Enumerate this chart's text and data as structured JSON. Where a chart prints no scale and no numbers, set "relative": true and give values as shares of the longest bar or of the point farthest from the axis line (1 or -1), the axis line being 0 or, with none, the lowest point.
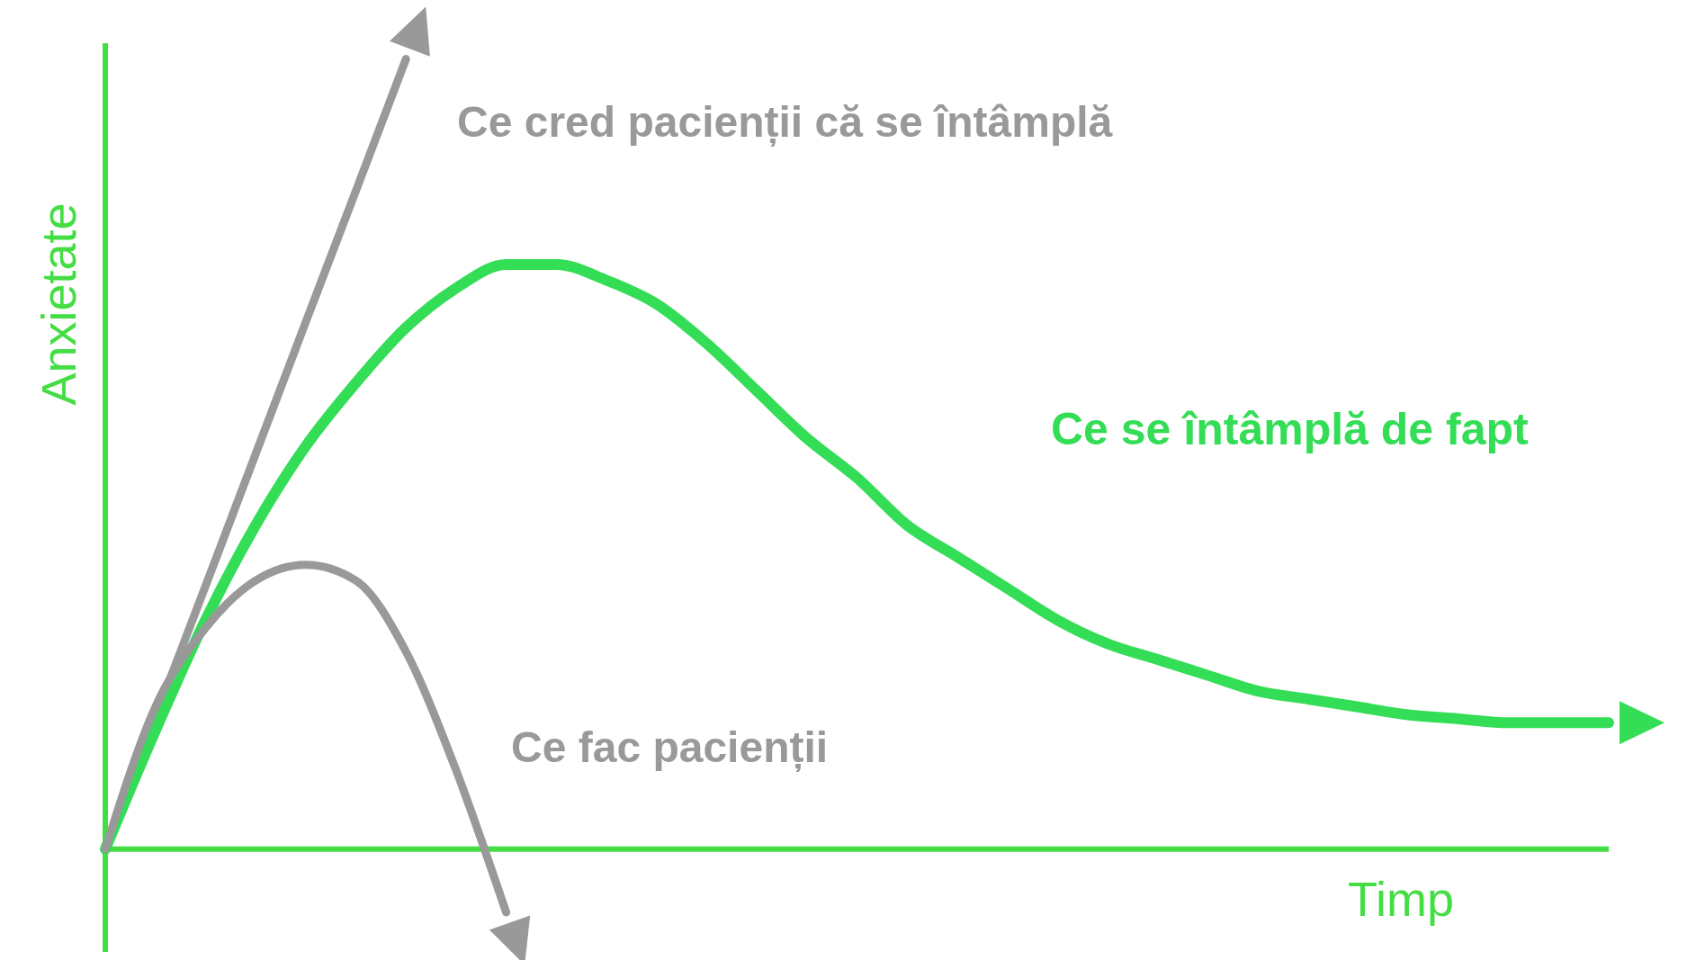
{
  "chart_data": {
    "type": "line",
    "relative": true,
    "xlabel": "Timp",
    "ylabel": "Anxietate",
    "categories": [
      null,
      null,
      null,
      null,
      null,
      null,
      null,
      null,
      null,
      null,
      null,
      null,
      null,
      null,
      null,
      null,
      null,
      null,
      null,
      null,
      null,
      null,
      null,
      null,
      null,
      null,
      null,
      null,
      null,
      null,
      null
    ],
    "series": [
      {
        "name": "Ce cred pacienții că se întâmplă",
        "color": "#999999",
        "values": [
          0,
          0.167,
          0.333,
          0.5,
          0.667,
          0.833,
          1,
          null,
          null,
          null,
          null,
          null,
          null,
          null,
          null,
          null,
          null,
          null,
          null,
          null,
          null,
          null,
          null,
          null,
          null,
          null,
          null,
          null,
          null,
          null,
          null
        ]
      },
      {
        "name": "Ce se întâmplă de fapt",
        "color": "#33dd55",
        "values": [
          0,
          0.15,
          0.29,
          0.41,
          0.51,
          0.59,
          0.66,
          0.71,
          0.74,
          0.74,
          0.72,
          0.69,
          0.64,
          0.58,
          0.52,
          0.47,
          0.41,
          0.37,
          0.33,
          0.29,
          0.26,
          0.24,
          0.22,
          0.2,
          0.19,
          0.18,
          0.17,
          0.165,
          0.16,
          0.16,
          0.16
        ]
      },
      {
        "name": "Ce fac pacienții",
        "color": "#999999",
        "values": [
          0,
          0.18,
          0.28,
          0.34,
          0.36,
          0.34,
          0.25,
          0.1,
          -0.08,
          null,
          null,
          null,
          null,
          null,
          null,
          null,
          null,
          null,
          null,
          null,
          null,
          null,
          null,
          null,
          null,
          null,
          null,
          null,
          null,
          null,
          null
        ]
      }
    ],
    "ref_lines": [
      {
        "axis": "y",
        "value": 0,
        "color": "#44dd44"
      }
    ],
    "marker": "none",
    "line_style": "solid"
  }
}
